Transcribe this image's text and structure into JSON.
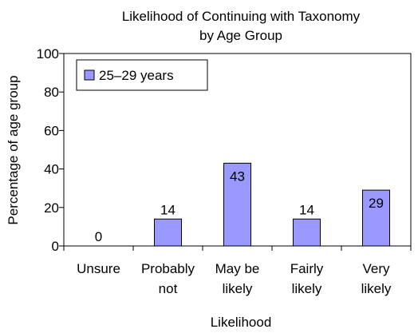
{
  "chart_data": {
    "type": "bar",
    "title_lines": [
      "Likelihood of Continuing with Taxonomy",
      "by Age Group"
    ],
    "xlabel": "Likelihood",
    "ylabel": "Percentage of age group",
    "categories": [
      [
        "Unsure"
      ],
      [
        "Probably",
        "not"
      ],
      [
        "May be",
        "likely"
      ],
      [
        "Fairly",
        "likely"
      ],
      [
        "Very",
        "likely"
      ]
    ],
    "series": [
      {
        "name": "25–29 years",
        "values": [
          0,
          14,
          43,
          14,
          29
        ],
        "color": "#9999ff"
      }
    ],
    "data_labels": [
      "0",
      "14",
      "43",
      "14",
      "29"
    ],
    "ylim": [
      0,
      100
    ],
    "yticks": [
      0,
      20,
      40,
      60,
      80,
      100
    ],
    "grid": false,
    "legend_position": "top-left"
  }
}
